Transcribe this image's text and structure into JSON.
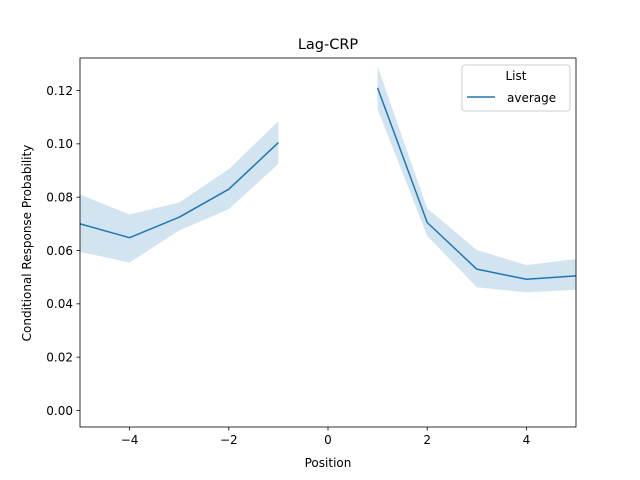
{
  "chart_data": {
    "type": "line",
    "title": "Lag-CRP",
    "xlabel": "Position",
    "ylabel": "Conditional Response Probability",
    "xlim": [
      -5,
      5
    ],
    "ylim": [
      -0.0062,
      0.1322
    ],
    "x_ticks": [
      -4,
      -2,
      0,
      2,
      4
    ],
    "x_tick_labels": [
      "−4",
      "−2",
      "0",
      "2",
      "4"
    ],
    "y_ticks": [
      0.0,
      0.02,
      0.04,
      0.06,
      0.08,
      0.1,
      0.12
    ],
    "y_tick_labels": [
      "0.00",
      "0.02",
      "0.04",
      "0.06",
      "0.08",
      "0.10",
      "0.12"
    ],
    "grid": false,
    "legend": {
      "title": "List",
      "placement": "top-right"
    },
    "series": [
      {
        "name": "average",
        "color": "#1f77b4",
        "band_color": "#1f77b4",
        "segments": [
          {
            "x": [
              -5,
              -4,
              -3,
              -2,
              -1
            ],
            "y": [
              0.07,
              0.0648,
              0.0725,
              0.083,
              0.1005
            ],
            "lower": [
              0.0595,
              0.0555,
              0.0675,
              0.0755,
              0.0925
            ],
            "upper": [
              0.081,
              0.0735,
              0.078,
              0.0905,
              0.1085
            ]
          },
          {
            "x": [
              1,
              2,
              3,
              4,
              5
            ],
            "y": [
              0.121,
              0.0705,
              0.053,
              0.0492,
              0.0505
            ],
            "lower": [
              0.113,
              0.0655,
              0.0462,
              0.0443,
              0.0453
            ],
            "upper": [
              0.129,
              0.0758,
              0.0602,
              0.0545,
              0.0568
            ]
          }
        ]
      }
    ]
  }
}
